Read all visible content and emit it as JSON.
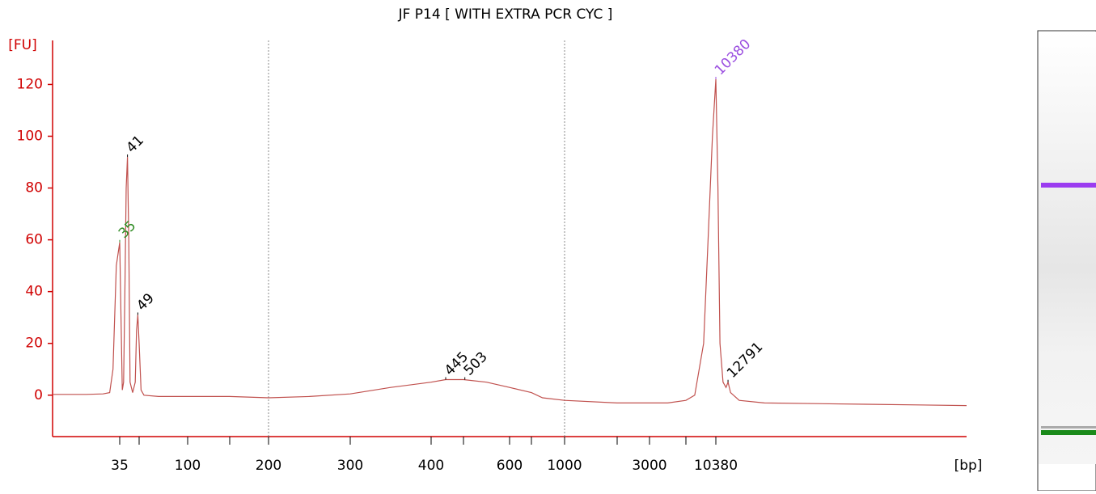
{
  "chart_data": {
    "type": "line",
    "title": "JF P14  [ WITH EXTRA PCR CYC ]",
    "y_label": "[FU]",
    "x_label": "[bp]",
    "ylim": [
      -16,
      137
    ],
    "yticks": [
      0,
      20,
      40,
      60,
      80,
      100,
      120
    ],
    "xlim": [
      15,
      60000
    ],
    "xticks": [
      35,
      {
        "value": 50,
        "label": null
      },
      100,
      {
        "value": 150,
        "label": null
      },
      200,
      300,
      400,
      {
        "value": 500,
        "label": null
      },
      600,
      {
        "value": 700,
        "label": null
      },
      1000,
      {
        "value": 2000,
        "label": null
      },
      3000,
      {
        "value": 7000,
        "label": null
      },
      10380
    ],
    "xgrid": [
      200,
      1000
    ],
    "series": [
      {
        "color": "#c0504d",
        "x": [
          15,
          25,
          30,
          32,
          33,
          34,
          35,
          36,
          37,
          38,
          39,
          40,
          41,
          42,
          43,
          45,
          47,
          48,
          49,
          50,
          52,
          55,
          70,
          100,
          150,
          200,
          250,
          300,
          350,
          400,
          445,
          500,
          550,
          600,
          700,
          800,
          1000,
          2000,
          3000,
          5000,
          7000,
          8000,
          9000,
          9500,
          10000,
          10380,
          10800,
          11200,
          11800,
          12400,
          12791,
          13300,
          15000,
          20000,
          40000,
          60000
        ],
        "values": [
          0.3,
          0.3,
          0.5,
          1,
          10,
          50,
          59,
          30,
          2,
          5,
          40,
          80,
          92,
          60,
          5,
          1,
          5,
          25,
          31,
          20,
          2,
          0,
          -0.5,
          -0.5,
          -0.5,
          -1,
          -0.5,
          0.5,
          3,
          5,
          6,
          6,
          5,
          3,
          1,
          -1,
          -2,
          -3,
          -3,
          -3,
          -2,
          0,
          20,
          60,
          100,
          122,
          80,
          20,
          5,
          3,
          5,
          1,
          -2,
          -3,
          -3.5,
          -4
        ]
      }
    ],
    "peaks": {
      "x": [
        35,
        41,
        49,
        445,
        503,
        10380,
        12791
      ],
      "values": [
        59,
        92,
        31,
        6,
        6,
        122,
        5
      ],
      "colors": [
        "#2e8b22",
        "#000000",
        "#000000",
        "#000000",
        "#000000",
        "#9b4fe0",
        "#000000"
      ]
    }
  }
}
